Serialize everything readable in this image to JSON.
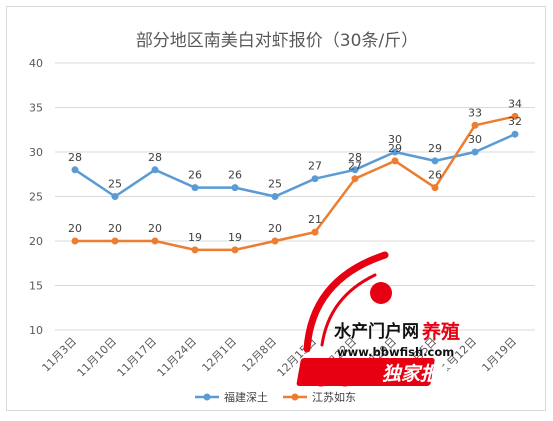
{
  "chart_data": {
    "type": "line",
    "title": "部分地区南美白对虾报价（30条/斤）",
    "categories": [
      "11月3日",
      "11月10日",
      "11月17日",
      "11月24日",
      "12月1日",
      "12月8日",
      "12月15日",
      "12月22日",
      "12月29日",
      "1月5日",
      "1月12日",
      "1月19日"
    ],
    "ylim": [
      10,
      40
    ],
    "yticks": [
      10,
      15,
      20,
      25,
      30,
      35,
      40
    ],
    "grid": true,
    "legend_position": "bottom",
    "series": [
      {
        "name": "福建深土",
        "color": "#5b9bd5",
        "values": [
          28,
          25,
          28,
          26,
          26,
          25,
          27,
          28,
          30,
          29,
          30,
          32
        ]
      },
      {
        "name": "江苏如东",
        "color": "#ed7d31",
        "values": [
          20,
          20,
          20,
          19,
          19,
          20,
          21,
          27,
          29,
          26,
          33,
          34
        ]
      }
    ]
  },
  "watermark": {
    "brand_text": "水产门户网",
    "brand_accent": "养殖",
    "url": "www.bbwfish.com",
    "banner": "独家报道",
    "red_color": "#e60012"
  }
}
